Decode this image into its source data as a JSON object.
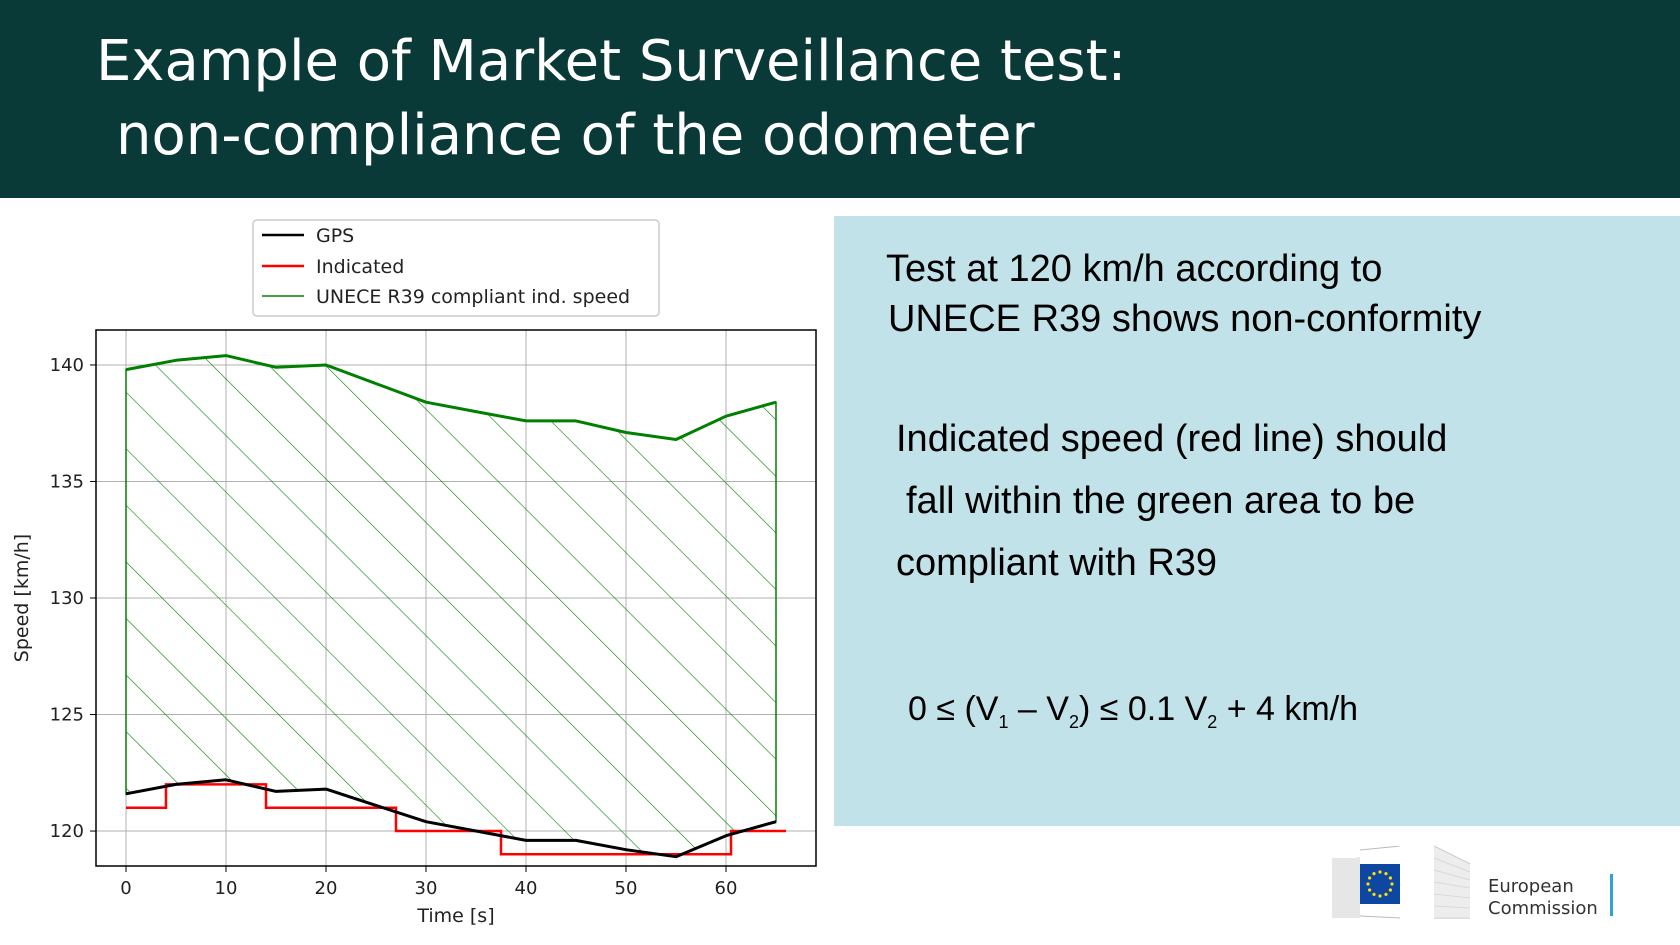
{
  "header": {
    "title_line1": "Example of Market Surveillance test:",
    "title_line2": "non-compliance of the odometer",
    "background": "#093a37"
  },
  "panel": {
    "background": "#c1e2e8",
    "p1_line1": "Test at 120 km/h according to",
    "p1_line2": "UNECE R39 shows non-conformity",
    "p2_line1": "Indicated speed (red line) should",
    "p2_line2": "fall within the green area to be",
    "p2_line3": "compliant with R39",
    "formula": {
      "part1": "0 ≤ (V",
      "sub1": "1",
      "part2": " – V",
      "sub2": "2",
      "part3": ") ≤ 0.1 V",
      "sub3": "2",
      "part4": " + 4 km/h"
    }
  },
  "logo": {
    "line1": "European",
    "line2": "Commission",
    "accent": "#2fa3d9",
    "flag_blue": "#0e47a1",
    "star_color": "#ffdd00"
  },
  "chart_data": {
    "type": "line",
    "xlabel": "Time [s]",
    "ylabel": "Speed [km/h]",
    "xlim": [
      -3,
      69
    ],
    "ylim": [
      118.5,
      141.5
    ],
    "xticks": [
      0,
      10,
      20,
      30,
      40,
      50,
      60
    ],
    "yticks": [
      120,
      125,
      130,
      135,
      140
    ],
    "grid": true,
    "legend_position": "above plot, center",
    "series": [
      {
        "name": "GPS",
        "color": "#000000",
        "x": [
          0,
          5,
          10,
          15,
          20,
          25,
          30,
          35,
          40,
          45,
          50,
          55,
          60,
          65
        ],
        "y": [
          121.6,
          122.0,
          122.2,
          121.7,
          121.8,
          121.1,
          120.4,
          120.0,
          119.6,
          119.6,
          119.2,
          118.9,
          119.8,
          120.4
        ]
      },
      {
        "name": "Indicated",
        "color": "#ff0000",
        "step": true,
        "x": [
          0,
          4,
          4,
          14,
          14,
          27,
          27,
          37.5,
          37.5,
          60.5,
          60.5,
          66
        ],
        "y": [
          121,
          121,
          122,
          122,
          121,
          121,
          120,
          120,
          119,
          119,
          120,
          120
        ]
      },
      {
        "name": "UNECE R39 compliant ind. speed",
        "color": "#008000",
        "hatched_area": true,
        "x": [
          0,
          5,
          10,
          15,
          20,
          25,
          30,
          35,
          40,
          45,
          50,
          55,
          60,
          65
        ],
        "y": [
          139.8,
          140.2,
          140.4,
          139.9,
          140.0,
          139.2,
          138.4,
          138.0,
          137.6,
          137.6,
          137.1,
          136.8,
          137.8,
          138.4
        ]
      }
    ]
  }
}
